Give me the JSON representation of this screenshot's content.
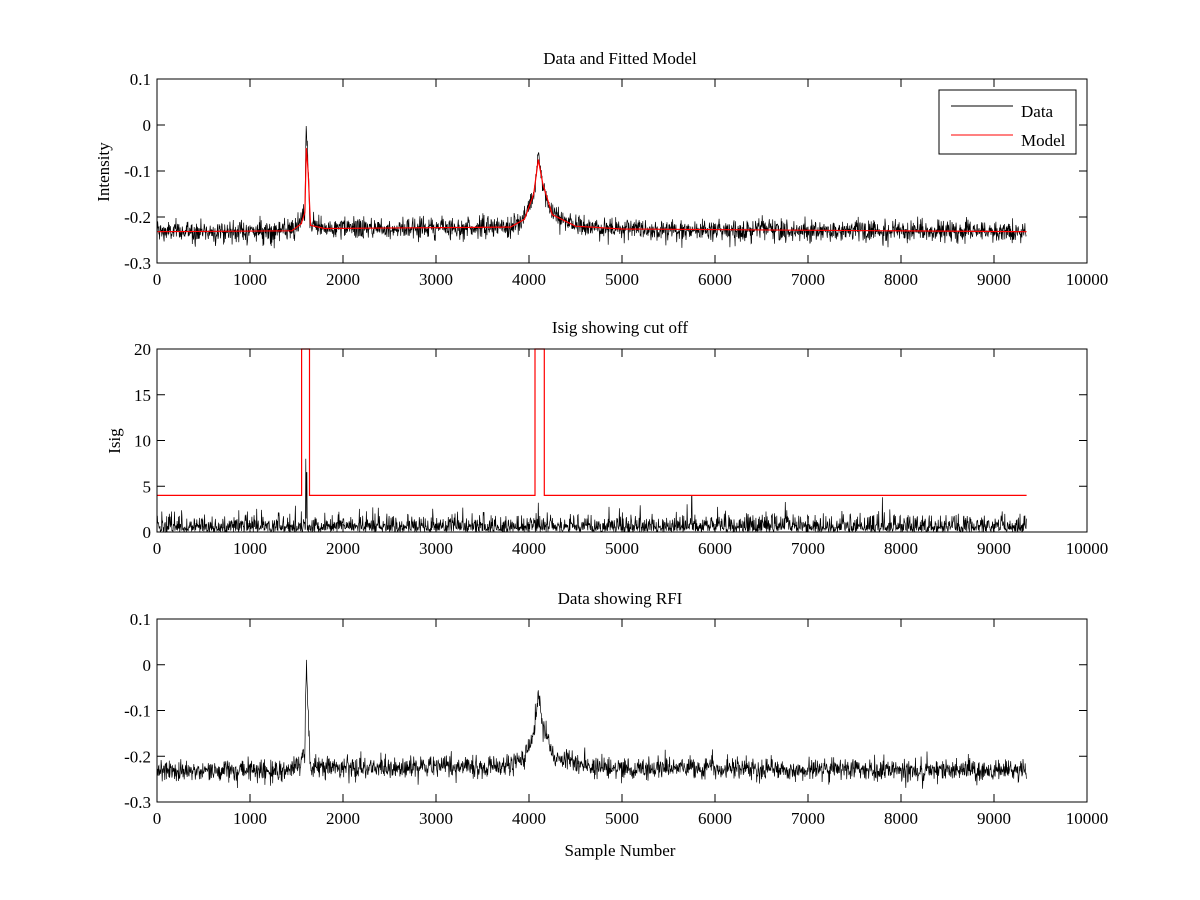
{
  "colors": {
    "data": "#000000",
    "model": "#ff0000",
    "axes": "#000000",
    "background": "#ffffff"
  },
  "chart_data": [
    {
      "type": "line",
      "title": "Data and Fitted Model",
      "xlabel": "",
      "ylabel": "Intensity",
      "xlim": [
        0,
        10000
      ],
      "ylim": [
        -0.3,
        0.1
      ],
      "xticks": [
        0,
        1000,
        2000,
        3000,
        4000,
        5000,
        6000,
        7000,
        8000,
        9000,
        10000
      ],
      "xtick_labels": [
        "0",
        "1000",
        "2000",
        "3000",
        "4000",
        "5000",
        "6000",
        "7000",
        "8000",
        "9000",
        "10000"
      ],
      "yticks": [
        -0.3,
        -0.2,
        -0.1,
        0,
        0.1
      ],
      "ytick_labels": [
        "-0.3",
        "-0.2",
        "-0.1",
        "0",
        "0.1"
      ],
      "grid": false,
      "legend": {
        "location": "top-right",
        "entries": [
          {
            "name": "Data",
            "color": "#000000"
          },
          {
            "name": "Model",
            "color": "#ff0000"
          }
        ]
      },
      "series": [
        {
          "name": "Data",
          "color": "#000000",
          "kind": "noisy",
          "x_range": [
            0,
            9350
          ],
          "noise_sd": 0.012,
          "baseline": [
            [
              0,
              -0.232
            ],
            [
              1450,
              -0.23
            ],
            [
              1550,
              -0.215
            ],
            [
              1590,
              -0.19
            ],
            [
              1605,
              0.018
            ],
            [
              1625,
              -0.1
            ],
            [
              1650,
              -0.218
            ],
            [
              1800,
              -0.225
            ],
            [
              3800,
              -0.222
            ],
            [
              3950,
              -0.205
            ],
            [
              4050,
              -0.15
            ],
            [
              4100,
              -0.068
            ],
            [
              4150,
              -0.13
            ],
            [
              4250,
              -0.195
            ],
            [
              4500,
              -0.22
            ],
            [
              5000,
              -0.226
            ],
            [
              9350,
              -0.232
            ]
          ]
        },
        {
          "name": "Model",
          "color": "#ff0000",
          "kind": "line",
          "points": [
            [
              0,
              -0.232
            ],
            [
              1450,
              -0.23
            ],
            [
              1550,
              -0.215
            ],
            [
              1590,
              -0.19
            ],
            [
              1605,
              -0.05
            ],
            [
              1625,
              -0.1
            ],
            [
              1650,
              -0.218
            ],
            [
              1800,
              -0.225
            ],
            [
              3800,
              -0.222
            ],
            [
              3950,
              -0.205
            ],
            [
              4050,
              -0.15
            ],
            [
              4100,
              -0.075
            ],
            [
              4150,
              -0.13
            ],
            [
              4250,
              -0.195
            ],
            [
              4500,
              -0.22
            ],
            [
              5000,
              -0.226
            ],
            [
              9350,
              -0.232
            ]
          ]
        }
      ]
    },
    {
      "type": "line",
      "title": "Isig showing cut off",
      "xlabel": "",
      "ylabel": "Isig",
      "xlim": [
        0,
        10000
      ],
      "ylim": [
        0,
        20
      ],
      "xticks": [
        0,
        1000,
        2000,
        3000,
        4000,
        5000,
        6000,
        7000,
        8000,
        9000,
        10000
      ],
      "xtick_labels": [
        "0",
        "1000",
        "2000",
        "3000",
        "4000",
        "5000",
        "6000",
        "7000",
        "8000",
        "9000",
        "10000"
      ],
      "yticks": [
        0,
        5,
        10,
        15,
        20
      ],
      "ytick_labels": [
        "0",
        "5",
        "10",
        "15",
        "20"
      ],
      "grid": false,
      "series": [
        {
          "name": "Isig",
          "color": "#000000",
          "kind": "abs-noise",
          "x_range": [
            0,
            9350
          ],
          "noise_sd": 1.0,
          "spikes": [
            [
              1600,
              8.0
            ],
            [
              1610,
              6.5
            ],
            [
              5750,
              4.0
            ],
            [
              7800,
              3.8
            ],
            [
              4100,
              3.2
            ]
          ]
        },
        {
          "name": "Cut off",
          "color": "#ff0000",
          "kind": "line",
          "points": [
            [
              0,
              4
            ],
            [
              1555,
              4
            ],
            [
              1555,
              20
            ],
            [
              1640,
              20
            ],
            [
              1640,
              4
            ],
            [
              4065,
              4
            ],
            [
              4065,
              20
            ],
            [
              4165,
              20
            ],
            [
              4165,
              4
            ],
            [
              9350,
              4
            ]
          ]
        }
      ]
    },
    {
      "type": "line",
      "title": "Data showing RFI",
      "xlabel": "Sample Number",
      "ylabel": "",
      "xlim": [
        0,
        10000
      ],
      "ylim": [
        -0.3,
        0.1
      ],
      "xticks": [
        0,
        1000,
        2000,
        3000,
        4000,
        5000,
        6000,
        7000,
        8000,
        9000,
        10000
      ],
      "xtick_labels": [
        "0",
        "1000",
        "2000",
        "3000",
        "4000",
        "5000",
        "6000",
        "7000",
        "8000",
        "9000",
        "10000"
      ],
      "yticks": [
        -0.3,
        -0.2,
        -0.1,
        0,
        0.1
      ],
      "ytick_labels": [
        "-0.3",
        "-0.2",
        "-0.1",
        "0",
        "0.1"
      ],
      "grid": false,
      "series": [
        {
          "name": "Data",
          "color": "#000000",
          "kind": "noisy",
          "x_range": [
            0,
            9350
          ],
          "noise_sd": 0.012,
          "baseline": [
            [
              0,
              -0.232
            ],
            [
              1450,
              -0.23
            ],
            [
              1550,
              -0.215
            ],
            [
              1590,
              -0.19
            ],
            [
              1605,
              0.018
            ],
            [
              1625,
              -0.1
            ],
            [
              1650,
              -0.218
            ],
            [
              1800,
              -0.225
            ],
            [
              3800,
              -0.222
            ],
            [
              3950,
              -0.205
            ],
            [
              4050,
              -0.15
            ],
            [
              4100,
              -0.068
            ],
            [
              4150,
              -0.13
            ],
            [
              4250,
              -0.195
            ],
            [
              4500,
              -0.22
            ],
            [
              5000,
              -0.226
            ],
            [
              9350,
              -0.232
            ]
          ]
        }
      ]
    }
  ]
}
